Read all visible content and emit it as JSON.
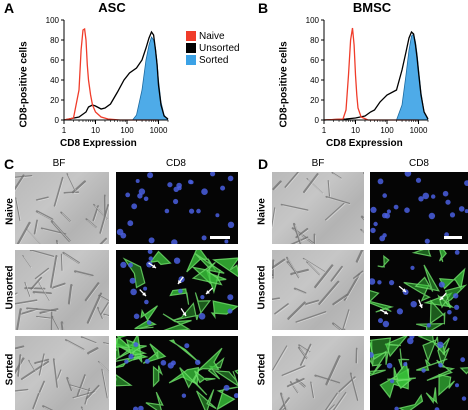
{
  "panels": {
    "A": {
      "label": "A",
      "title": "ASC"
    },
    "B": {
      "label": "B",
      "title": "BMSC"
    },
    "C": {
      "label": "C"
    },
    "D": {
      "label": "D"
    }
  },
  "legend": [
    {
      "name": "Naive",
      "color": "#f03c2a"
    },
    {
      "name": "Unsorted",
      "color": "#000000"
    },
    {
      "name": "Sorted",
      "color": "#3ba2e6"
    }
  ],
  "columns": {
    "bf": "BF",
    "cd8": "CD8"
  },
  "rows": [
    "Naive",
    "Unsorted",
    "Sorted"
  ],
  "chart_data": [
    {
      "type": "area",
      "title": "ASC",
      "xlabel": "CD8 Expression",
      "ylabel": "CD8-positive cells",
      "xscale": "log",
      "xlim": [
        1,
        2000
      ],
      "ylim": [
        0,
        100
      ],
      "xticks": [
        "1",
        "10",
        "100",
        "1000"
      ],
      "xtick_values": [
        1,
        10,
        100,
        1000
      ],
      "yticks": [
        0,
        20,
        40,
        60,
        80,
        100
      ],
      "grid": false,
      "legend_position": "right",
      "series": [
        {
          "name": "Naive",
          "color": "#f03c2a",
          "fill": false,
          "x": [
            1,
            2,
            3,
            3.5,
            4,
            4.5,
            5,
            5.5,
            6,
            7,
            8,
            10,
            15,
            25,
            60,
            200,
            1000
          ],
          "y": [
            0,
            2,
            30,
            70,
            90,
            91,
            80,
            55,
            40,
            25,
            15,
            8,
            3,
            1,
            0,
            0,
            0
          ]
        },
        {
          "name": "Unsorted",
          "color": "#000000",
          "fill": false,
          "x": [
            1,
            3,
            5,
            6,
            8,
            10,
            15,
            20,
            30,
            50,
            80,
            120,
            200,
            300,
            400,
            500,
            600,
            700,
            800,
            900,
            1000,
            1200,
            1500,
            2000
          ],
          "y": [
            0,
            3,
            8,
            13,
            15,
            14,
            11,
            12,
            16,
            28,
            40,
            47,
            52,
            60,
            72,
            82,
            88,
            85,
            70,
            55,
            35,
            15,
            4,
            1
          ]
        },
        {
          "name": "Sorted",
          "color": "#3ba2e6",
          "fill": true,
          "x": [
            150,
            200,
            300,
            400,
            500,
            600,
            700,
            800,
            900,
            1000,
            1200,
            1500,
            2000
          ],
          "y": [
            0,
            5,
            30,
            60,
            75,
            83,
            80,
            72,
            58,
            40,
            18,
            5,
            0
          ]
        }
      ]
    },
    {
      "type": "area",
      "title": "BMSC",
      "xlabel": "CD8 Expression",
      "ylabel": "CD8-positive cells",
      "xscale": "log",
      "xlim": [
        1,
        2000
      ],
      "ylim": [
        0,
        100
      ],
      "xticks": [
        "1",
        "10",
        "100",
        "1000"
      ],
      "xtick_values": [
        1,
        10,
        100,
        1000
      ],
      "yticks": [
        0,
        20,
        40,
        60,
        80,
        100
      ],
      "grid": false,
      "legend_position": "left",
      "series": [
        {
          "name": "Naive",
          "color": "#f03c2a",
          "fill": false,
          "x": [
            1,
            4,
            5,
            6,
            7,
            8,
            9,
            10,
            11,
            12,
            15,
            25,
            60,
            200,
            1000
          ],
          "y": [
            0,
            1,
            10,
            45,
            80,
            92,
            75,
            45,
            25,
            12,
            3,
            0,
            0,
            0,
            0
          ]
        },
        {
          "name": "Unsorted",
          "color": "#000000",
          "fill": false,
          "x": [
            1,
            5,
            10,
            20,
            30,
            40,
            60,
            100,
            200,
            300,
            400,
            500,
            600,
            700,
            800,
            900,
            1000,
            1200,
            1500,
            2000
          ],
          "y": [
            0,
            1,
            2,
            4,
            8,
            10,
            18,
            25,
            30,
            50,
            68,
            82,
            88,
            86,
            75,
            62,
            48,
            25,
            8,
            1
          ]
        },
        {
          "name": "Sorted",
          "color": "#3ba2e6",
          "fill": true,
          "x": [
            200,
            300,
            400,
            500,
            600,
            700,
            800,
            900,
            1000,
            1200,
            1500,
            2000
          ],
          "y": [
            0,
            15,
            45,
            70,
            84,
            86,
            78,
            66,
            52,
            28,
            8,
            0
          ]
        }
      ]
    }
  ]
}
